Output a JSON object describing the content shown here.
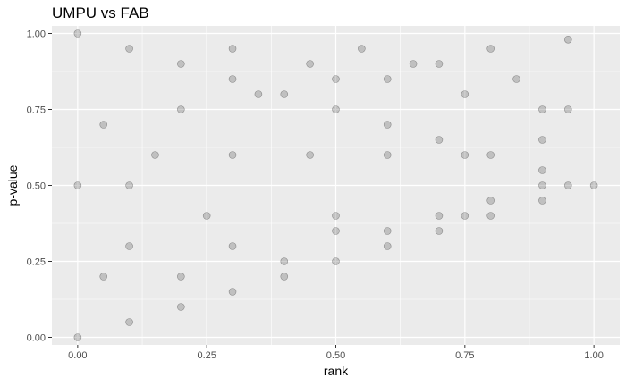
{
  "chart_data": {
    "type": "scatter",
    "title": "UMPU vs FAB",
    "xlabel": "rank",
    "ylabel": "p-value",
    "xlim": [
      -0.05,
      1.05
    ],
    "ylim": [
      -0.025,
      1.025
    ],
    "xticks": [
      0.0,
      0.25,
      0.5,
      0.75,
      1.0
    ],
    "xtick_labels": [
      "0.00",
      "0.25",
      "0.50",
      "0.75",
      "1.00"
    ],
    "yticks": [
      0.0,
      0.25,
      0.5,
      0.75,
      1.0
    ],
    "ytick_labels": [
      "0.00",
      "0.25",
      "0.50",
      "0.75",
      "1.00"
    ],
    "grid": true,
    "legend": "none",
    "point_color": "#000000",
    "panel_background": "#ebebeb",
    "series": [
      {
        "points": [
          [
            0.0,
            0.0
          ],
          [
            0.1,
            0.05
          ],
          [
            0.2,
            0.1
          ],
          [
            0.3,
            0.15
          ],
          [
            0.4,
            0.2
          ],
          [
            0.5,
            0.25
          ],
          [
            0.6,
            0.3
          ],
          [
            0.7,
            0.35
          ],
          [
            0.8,
            0.4
          ],
          [
            0.9,
            0.45
          ],
          [
            1.0,
            0.5
          ],
          [
            0.0,
            1.0
          ],
          [
            0.1,
            0.95
          ],
          [
            0.2,
            0.9
          ],
          [
            0.3,
            0.85
          ],
          [
            0.4,
            0.8
          ],
          [
            0.5,
            0.75
          ],
          [
            0.6,
            0.7
          ],
          [
            0.7,
            0.65
          ],
          [
            0.8,
            0.6
          ],
          [
            0.9,
            0.55
          ],
          [
            0.0,
            0.5
          ],
          [
            0.1,
            0.5
          ],
          [
            0.15,
            0.6
          ],
          [
            0.3,
            0.6
          ],
          [
            0.45,
            0.6
          ],
          [
            0.6,
            0.6
          ],
          [
            0.75,
            0.6
          ],
          [
            0.25,
            0.4
          ],
          [
            0.5,
            0.4
          ],
          [
            0.75,
            0.4
          ],
          [
            0.05,
            0.7
          ],
          [
            0.2,
            0.75
          ],
          [
            0.35,
            0.8
          ],
          [
            0.5,
            0.85
          ],
          [
            0.65,
            0.9
          ],
          [
            0.8,
            0.95
          ],
          [
            0.95,
            0.98
          ],
          [
            0.1,
            0.3
          ],
          [
            0.3,
            0.3
          ],
          [
            0.5,
            0.35
          ],
          [
            0.7,
            0.4
          ],
          [
            0.9,
            0.5
          ],
          [
            0.05,
            0.2
          ],
          [
            0.2,
            0.2
          ],
          [
            0.4,
            0.25
          ],
          [
            0.6,
            0.35
          ],
          [
            0.8,
            0.45
          ],
          [
            0.95,
            0.5
          ],
          [
            0.55,
            0.95
          ],
          [
            0.7,
            0.9
          ],
          [
            0.85,
            0.85
          ],
          [
            0.95,
            0.75
          ],
          [
            0.9,
            0.65
          ],
          [
            0.3,
            0.95
          ],
          [
            0.45,
            0.9
          ],
          [
            0.6,
            0.85
          ],
          [
            0.75,
            0.8
          ],
          [
            0.9,
            0.75
          ]
        ]
      }
    ]
  }
}
